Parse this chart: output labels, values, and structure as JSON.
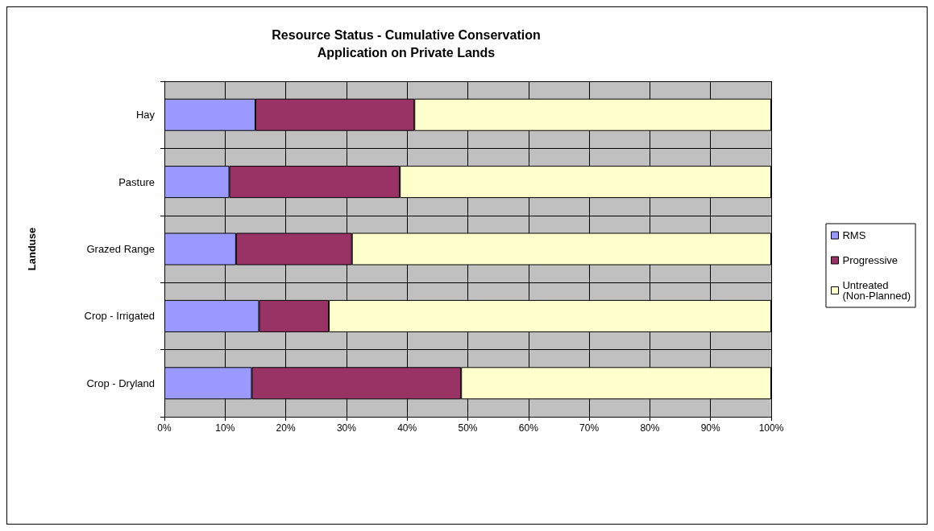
{
  "chart_data": {
    "type": "bar",
    "orientation": "horizontal",
    "stacked": true,
    "title": "Resource Status - Cumulative Conservation\nApplication on Private Lands",
    "ylabel": "Landuse",
    "categories": [
      "Hay",
      "Pasture",
      "Grazed Range",
      "Crop - Irrigated",
      "Crop - Dryland"
    ],
    "series": [
      {
        "name": "RMS",
        "color": "#9999ff",
        "values": [
          15,
          10.7,
          11.8,
          15.6,
          14.4
        ]
      },
      {
        "name": "Progressive",
        "color": "#993366",
        "values": [
          26.2,
          28.1,
          19.1,
          11.5,
          34.5
        ]
      },
      {
        "name": "Untreated (Non-Planned)",
        "color": "#ffffcc",
        "values": [
          58.8,
          61.2,
          69.1,
          72.9,
          51.1
        ]
      }
    ],
    "xlim": [
      0,
      100
    ],
    "xticks": [
      {
        "value": 0,
        "label": "0%"
      },
      {
        "value": 10,
        "label": "10%"
      },
      {
        "value": 20,
        "label": "20%"
      },
      {
        "value": 30,
        "label": "30%"
      },
      {
        "value": 40,
        "label": "40%"
      },
      {
        "value": 50,
        "label": "50%"
      },
      {
        "value": 60,
        "label": "60%"
      },
      {
        "value": 70,
        "label": "70%"
      },
      {
        "value": 80,
        "label": "80%"
      },
      {
        "value": 90,
        "label": "90%"
      },
      {
        "value": 100,
        "label": "100%"
      }
    ],
    "grid": true,
    "legend": "right"
  }
}
